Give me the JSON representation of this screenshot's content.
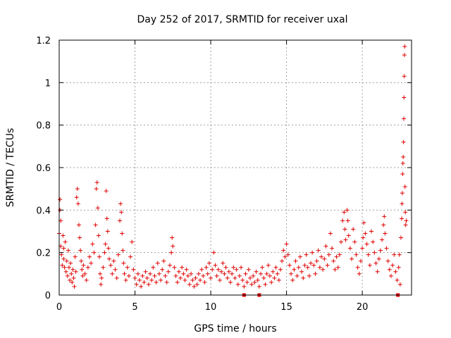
{
  "chart_data": {
    "type": "scatter",
    "title": "Day 252 of 2017, SRMTID for receiver uxal",
    "xlabel": "GPS time / hours",
    "ylabel": "SRMTID / TECUs",
    "xlim": [
      0,
      23.25
    ],
    "ylim": [
      0,
      1.2
    ],
    "xticks": [
      0,
      5,
      10,
      15,
      20
    ],
    "xtick_labels": [
      "0",
      "5",
      "10",
      "15",
      "20"
    ],
    "yticks": [
      0,
      0.2,
      0.4,
      0.6,
      0.8,
      1.0,
      1.2
    ],
    "ytick_labels": [
      "0",
      "0.2",
      "0.4",
      "0.6",
      "0.8",
      "1",
      "1.2"
    ],
    "grid": true,
    "marker": "+",
    "color": "#e00000",
    "series": [
      {
        "name": "SRMTID",
        "points": [
          [
            0.0,
            0.29
          ],
          [
            0.05,
            0.45
          ],
          [
            0.05,
            0.4
          ],
          [
            0.1,
            0.35
          ],
          [
            0.1,
            0.23
          ],
          [
            0.15,
            0.19
          ],
          [
            0.2,
            0.14
          ],
          [
            0.25,
            0.28
          ],
          [
            0.3,
            0.22
          ],
          [
            0.3,
            0.17
          ],
          [
            0.35,
            0.13
          ],
          [
            0.4,
            0.25
          ],
          [
            0.45,
            0.11
          ],
          [
            0.5,
            0.16
          ],
          [
            0.55,
            0.09
          ],
          [
            0.6,
            0.21
          ],
          [
            0.65,
            0.13
          ],
          [
            0.7,
            0.07
          ],
          [
            0.75,
            0.15
          ],
          [
            0.8,
            0.1
          ],
          [
            0.85,
            0.06
          ],
          [
            0.9,
            0.12
          ],
          [
            0.95,
            0.08
          ],
          [
            1.0,
            0.04
          ],
          [
            1.05,
            0.18
          ],
          [
            1.1,
            0.11
          ],
          [
            1.15,
            0.46
          ],
          [
            1.2,
            0.5
          ],
          [
            1.25,
            0.43
          ],
          [
            1.3,
            0.33
          ],
          [
            1.35,
            0.27
          ],
          [
            1.4,
            0.21
          ],
          [
            1.45,
            0.16
          ],
          [
            1.5,
            0.12
          ],
          [
            1.55,
            0.09
          ],
          [
            1.6,
            0.14
          ],
          [
            1.7,
            0.1
          ],
          [
            1.8,
            0.07
          ],
          [
            1.9,
            0.13
          ],
          [
            2.0,
            0.18
          ],
          [
            2.1,
            0.15
          ],
          [
            2.2,
            0.24
          ],
          [
            2.3,
            0.2
          ],
          [
            2.4,
            0.33
          ],
          [
            2.45,
            0.5
          ],
          [
            2.5,
            0.53
          ],
          [
            2.55,
            0.41
          ],
          [
            2.6,
            0.28
          ],
          [
            2.65,
            0.18
          ],
          [
            2.7,
            0.1
          ],
          [
            2.75,
            0.05
          ],
          [
            2.8,
            0.08
          ],
          [
            2.9,
            0.13
          ],
          [
            3.0,
            0.2
          ],
          [
            3.05,
            0.24
          ],
          [
            3.1,
            0.49
          ],
          [
            3.15,
            0.36
          ],
          [
            3.2,
            0.3
          ],
          [
            3.25,
            0.22
          ],
          [
            3.3,
            0.17
          ],
          [
            3.4,
            0.14
          ],
          [
            3.5,
            0.1
          ],
          [
            3.6,
            0.16
          ],
          [
            3.7,
            0.12
          ],
          [
            3.8,
            0.08
          ],
          [
            3.9,
            0.19
          ],
          [
            4.0,
            0.35
          ],
          [
            4.05,
            0.43
          ],
          [
            4.1,
            0.39
          ],
          [
            4.15,
            0.29
          ],
          [
            4.2,
            0.21
          ],
          [
            4.25,
            0.15
          ],
          [
            4.3,
            0.1
          ],
          [
            4.4,
            0.07
          ],
          [
            4.5,
            0.13
          ],
          [
            4.6,
            0.09
          ],
          [
            4.7,
            0.18
          ],
          [
            4.8,
            0.25
          ],
          [
            4.9,
            0.12
          ],
          [
            5.0,
            0.08
          ],
          [
            5.1,
            0.05
          ],
          [
            5.2,
            0.1
          ],
          [
            5.3,
            0.07
          ],
          [
            5.4,
            0.04
          ],
          [
            5.5,
            0.09
          ],
          [
            5.6,
            0.06
          ],
          [
            5.7,
            0.11
          ],
          [
            5.8,
            0.08
          ],
          [
            5.9,
            0.05
          ],
          [
            6.0,
            0.1
          ],
          [
            6.1,
            0.07
          ],
          [
            6.2,
            0.13
          ],
          [
            6.3,
            0.09
          ],
          [
            6.4,
            0.06
          ],
          [
            6.5,
            0.15
          ],
          [
            6.6,
            0.1
          ],
          [
            6.7,
            0.07
          ],
          [
            6.8,
            0.12
          ],
          [
            6.9,
            0.16
          ],
          [
            7.0,
            0.09
          ],
          [
            7.1,
            0.06
          ],
          [
            7.2,
            0.11
          ],
          [
            7.3,
            0.14
          ],
          [
            7.4,
            0.2
          ],
          [
            7.45,
            0.27
          ],
          [
            7.5,
            0.23
          ],
          [
            7.6,
            0.13
          ],
          [
            7.7,
            0.09
          ],
          [
            7.8,
            0.06
          ],
          [
            7.9,
            0.11
          ],
          [
            8.0,
            0.08
          ],
          [
            8.1,
            0.13
          ],
          [
            8.2,
            0.1
          ],
          [
            8.3,
            0.07
          ],
          [
            8.4,
            0.12
          ],
          [
            8.5,
            0.09
          ],
          [
            8.6,
            0.05
          ],
          [
            8.7,
            0.1
          ],
          [
            8.8,
            0.07
          ],
          [
            8.9,
            0.04
          ],
          [
            9.0,
            0.08
          ],
          [
            9.1,
            0.05
          ],
          [
            9.2,
            0.1
          ],
          [
            9.3,
            0.07
          ],
          [
            9.4,
            0.12
          ],
          [
            9.5,
            0.09
          ],
          [
            9.6,
            0.06
          ],
          [
            9.7,
            0.13
          ],
          [
            9.8,
            0.1
          ],
          [
            9.9,
            0.15
          ],
          [
            10.0,
            0.08
          ],
          [
            10.1,
            0.12
          ],
          [
            10.2,
            0.2
          ],
          [
            10.3,
            0.14
          ],
          [
            10.4,
            0.09
          ],
          [
            10.5,
            0.12
          ],
          [
            10.6,
            0.07
          ],
          [
            10.7,
            0.11
          ],
          [
            10.8,
            0.15
          ],
          [
            10.9,
            0.1
          ],
          [
            11.0,
            0.13
          ],
          [
            11.1,
            0.08
          ],
          [
            11.2,
            0.11
          ],
          [
            11.3,
            0.06
          ],
          [
            11.4,
            0.1
          ],
          [
            11.5,
            0.13
          ],
          [
            11.6,
            0.08
          ],
          [
            11.7,
            0.12
          ],
          [
            11.8,
            0.05
          ],
          [
            11.9,
            0.09
          ],
          [
            12.0,
            0.13
          ],
          [
            12.1,
            0.07
          ],
          [
            12.2,
            0.04
          ],
          [
            12.3,
            0.1
          ],
          [
            12.4,
            0.06
          ],
          [
            12.5,
            0.12
          ],
          [
            12.6,
            0.08
          ],
          [
            12.7,
            0.05
          ],
          [
            12.8,
            0.09
          ],
          [
            12.9,
            0.06
          ],
          [
            13.0,
            0.11
          ],
          [
            13.1,
            0.07
          ],
          [
            13.2,
            0.04
          ],
          [
            13.3,
            0.1
          ],
          [
            13.4,
            0.13
          ],
          [
            13.5,
            0.08
          ],
          [
            13.6,
            0.05
          ],
          [
            13.7,
            0.1
          ],
          [
            13.8,
            0.14
          ],
          [
            13.9,
            0.09
          ],
          [
            14.0,
            0.06
          ],
          [
            14.1,
            0.11
          ],
          [
            14.2,
            0.08
          ],
          [
            14.3,
            0.13
          ],
          [
            14.4,
            0.1
          ],
          [
            14.5,
            0.07
          ],
          [
            14.6,
            0.12
          ],
          [
            14.7,
            0.16
          ],
          [
            14.8,
            0.21
          ],
          [
            14.9,
            0.18
          ],
          [
            15.0,
            0.24
          ],
          [
            15.1,
            0.19
          ],
          [
            15.2,
            0.14
          ],
          [
            15.3,
            0.1
          ],
          [
            15.4,
            0.07
          ],
          [
            15.5,
            0.12
          ],
          [
            15.6,
            0.16
          ],
          [
            15.7,
            0.09
          ],
          [
            15.8,
            0.13
          ],
          [
            15.9,
            0.18
          ],
          [
            16.0,
            0.11
          ],
          [
            16.1,
            0.08
          ],
          [
            16.2,
            0.14
          ],
          [
            16.3,
            0.19
          ],
          [
            16.4,
            0.13
          ],
          [
            16.5,
            0.09
          ],
          [
            16.6,
            0.15
          ],
          [
            16.7,
            0.2
          ],
          [
            16.8,
            0.14
          ],
          [
            16.9,
            0.1
          ],
          [
            17.0,
            0.16
          ],
          [
            17.1,
            0.21
          ],
          [
            17.2,
            0.13
          ],
          [
            17.3,
            0.18
          ],
          [
            17.4,
            0.12
          ],
          [
            17.5,
            0.17
          ],
          [
            17.6,
            0.23
          ],
          [
            17.7,
            0.14
          ],
          [
            17.8,
            0.19
          ],
          [
            17.9,
            0.29
          ],
          [
            18.0,
            0.22
          ],
          [
            18.1,
            0.16
          ],
          [
            18.2,
            0.12
          ],
          [
            18.3,
            0.18
          ],
          [
            18.4,
            0.13
          ],
          [
            18.5,
            0.19
          ],
          [
            18.6,
            0.25
          ],
          [
            18.7,
            0.35
          ],
          [
            18.8,
            0.39
          ],
          [
            18.85,
            0.31
          ],
          [
            18.9,
            0.26
          ],
          [
            19.0,
            0.4
          ],
          [
            19.05,
            0.35
          ],
          [
            19.1,
            0.28
          ],
          [
            19.2,
            0.22
          ],
          [
            19.3,
            0.17
          ],
          [
            19.4,
            0.31
          ],
          [
            19.5,
            0.25
          ],
          [
            19.6,
            0.19
          ],
          [
            19.7,
            0.13
          ],
          [
            19.8,
            0.1
          ],
          [
            19.9,
            0.16
          ],
          [
            20.0,
            0.22
          ],
          [
            20.05,
            0.27
          ],
          [
            20.1,
            0.34
          ],
          [
            20.2,
            0.29
          ],
          [
            20.3,
            0.24
          ],
          [
            20.4,
            0.19
          ],
          [
            20.5,
            0.14
          ],
          [
            20.6,
            0.3
          ],
          [
            20.7,
            0.25
          ],
          [
            20.8,
            0.2
          ],
          [
            20.9,
            0.15
          ],
          [
            21.0,
            0.11
          ],
          [
            21.1,
            0.17
          ],
          [
            21.2,
            0.21
          ],
          [
            21.3,
            0.26
          ],
          [
            21.4,
            0.33
          ],
          [
            21.45,
            0.37
          ],
          [
            21.5,
            0.29
          ],
          [
            21.6,
            0.22
          ],
          [
            21.7,
            0.16
          ],
          [
            21.8,
            0.12
          ],
          [
            21.9,
            0.09
          ],
          [
            22.0,
            0.14
          ],
          [
            22.1,
            0.19
          ],
          [
            22.2,
            0.11
          ],
          [
            22.3,
            0.07
          ],
          [
            22.4,
            0.13
          ],
          [
            22.45,
            0.19
          ],
          [
            22.5,
            0.05
          ],
          [
            22.55,
            0.27
          ],
          [
            22.6,
            0.36
          ],
          [
            22.62,
            0.43
          ],
          [
            22.64,
            0.48
          ],
          [
            22.66,
            0.57
          ],
          [
            22.68,
            0.62
          ],
          [
            22.7,
            0.65
          ],
          [
            22.72,
            0.72
          ],
          [
            22.74,
            0.83
          ],
          [
            22.75,
            0.93
          ],
          [
            22.77,
            1.03
          ],
          [
            22.78,
            1.13
          ],
          [
            22.8,
            1.17
          ],
          [
            22.82,
            0.51
          ],
          [
            22.84,
            0.39
          ],
          [
            22.86,
            0.33
          ],
          [
            22.9,
            0.35
          ]
        ]
      }
    ],
    "baseline_markers_x": [
      12.2,
      13.2,
      22.35
    ]
  }
}
